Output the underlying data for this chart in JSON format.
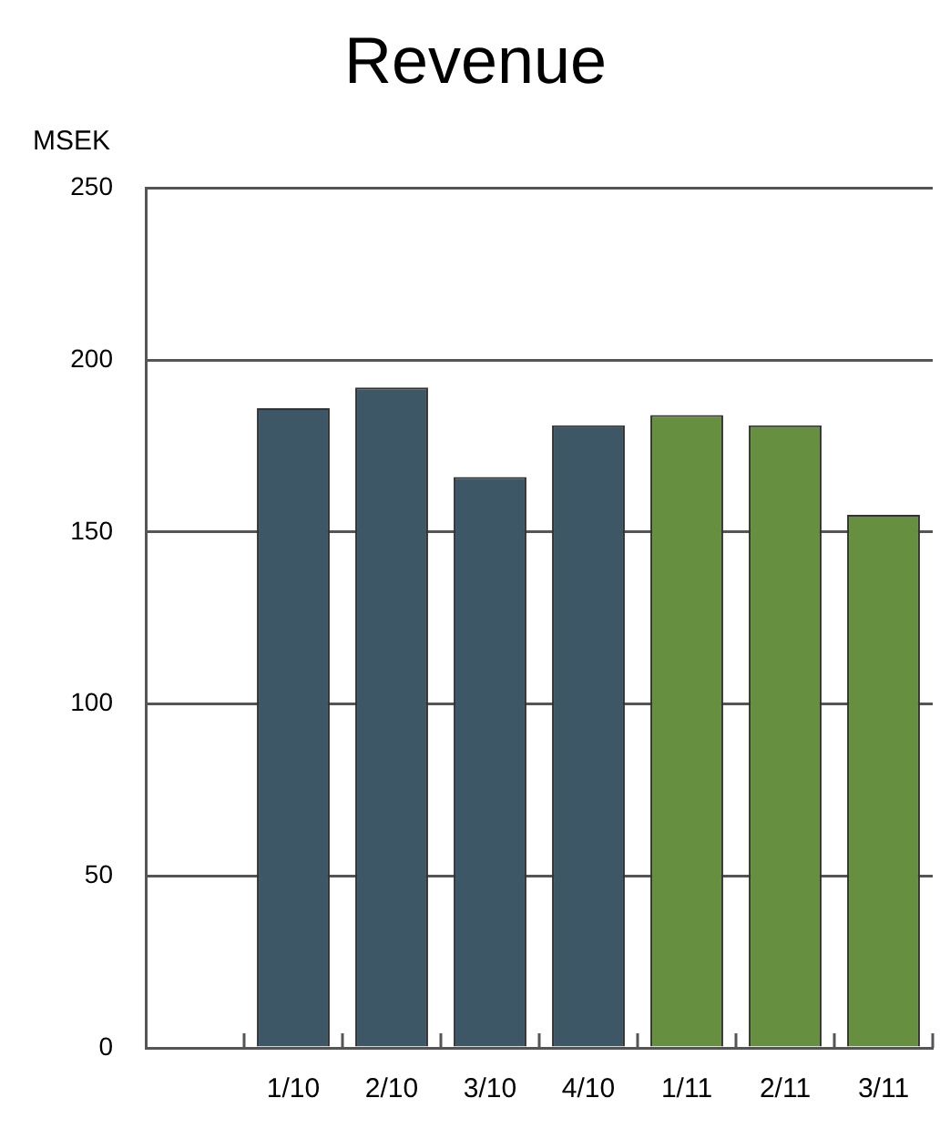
{
  "chart_data": {
    "type": "bar",
    "title": "Revenue",
    "ylabel": "MSEK",
    "categories": [
      null,
      "1/10",
      "2/10",
      "3/10",
      "4/10",
      "1/11",
      "2/11",
      "3/11"
    ],
    "values": [
      null,
      186,
      192,
      166,
      181,
      184,
      181,
      155
    ],
    "colors": [
      "#3e5766",
      "#3e5766",
      "#3e5766",
      "#3e5766",
      "#3e5766",
      "#66903f",
      "#66903f",
      "#66903f"
    ],
    "ylim": [
      0,
      250
    ],
    "yticks": [
      0,
      50,
      100,
      150,
      200,
      250
    ],
    "grid": "y",
    "legend": false
  }
}
